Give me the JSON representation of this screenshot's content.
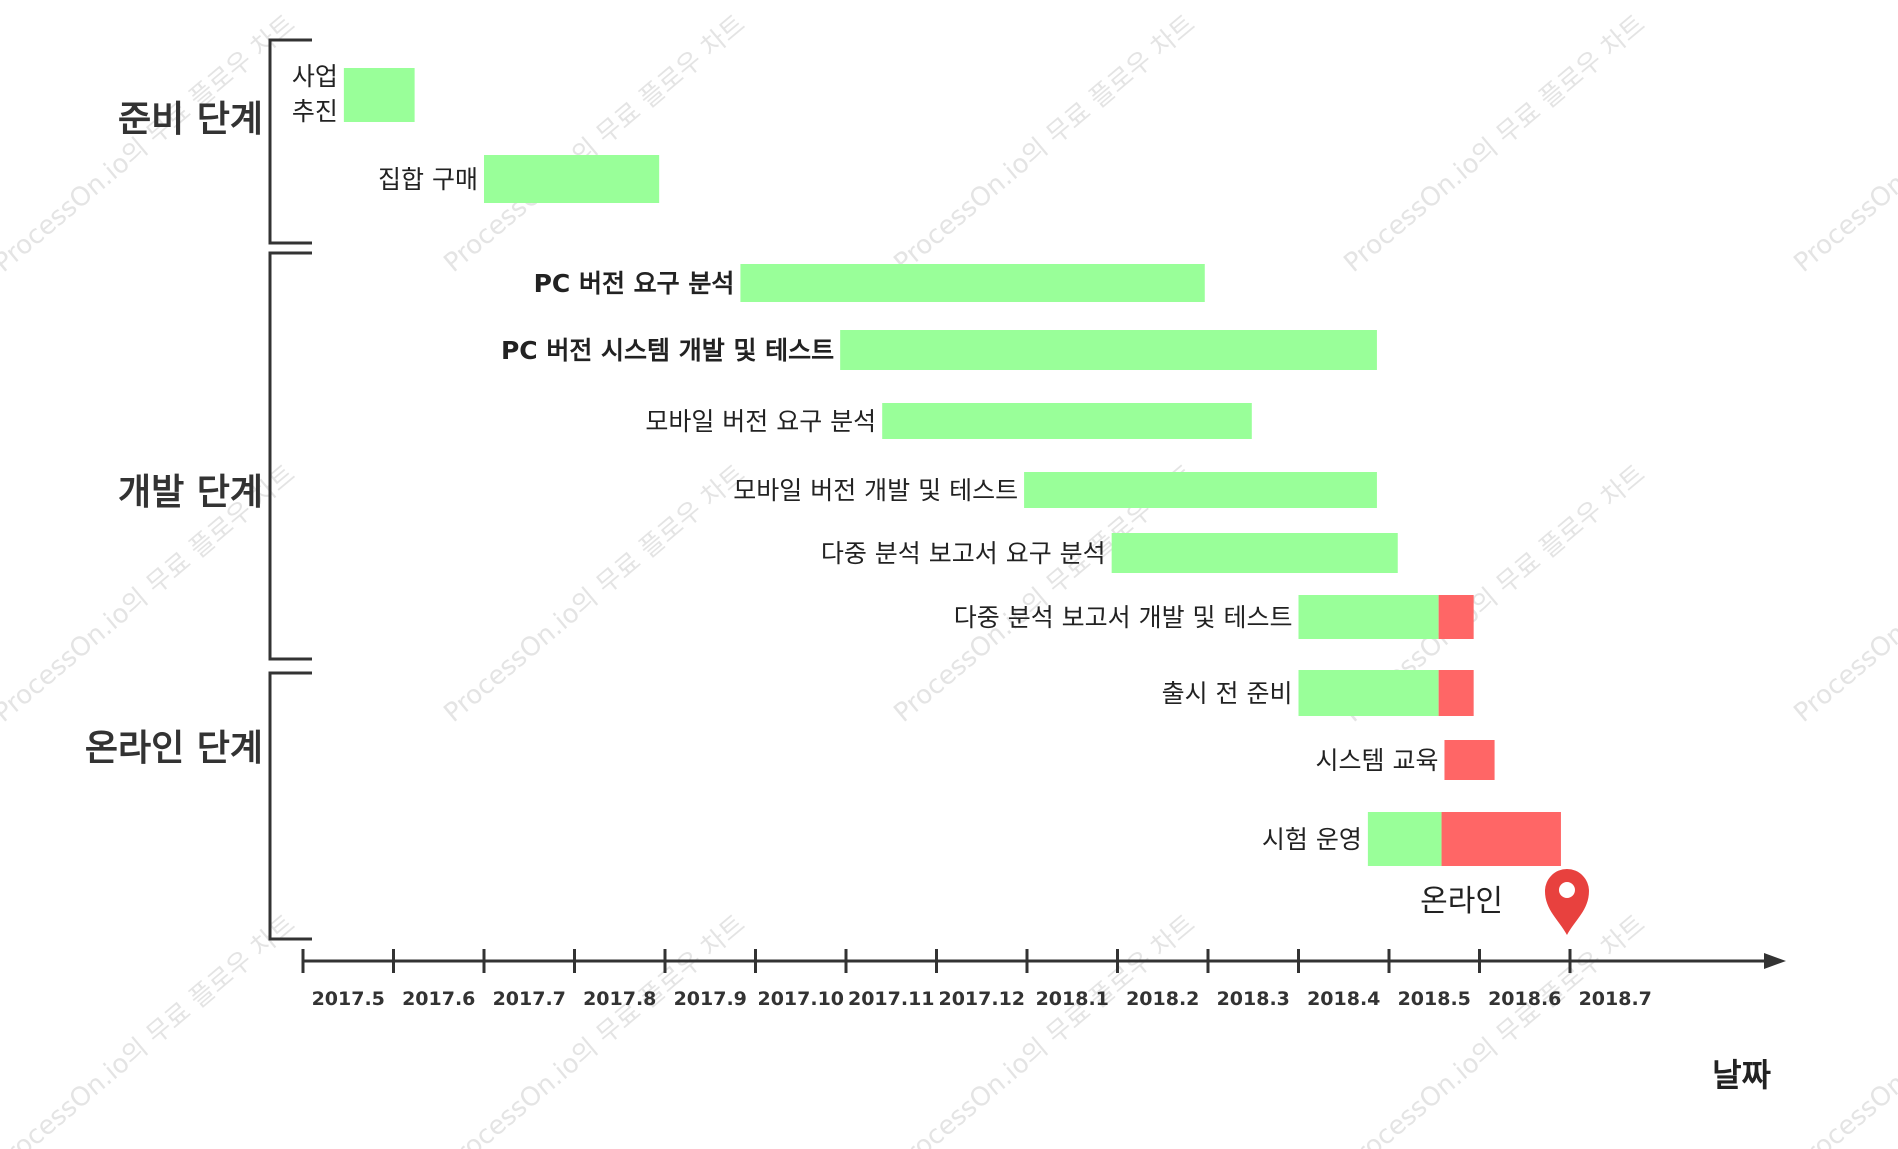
{
  "watermark": "ProcessOn.io의 무료 플로우 차트",
  "colors": {
    "done": "#99ff99",
    "remaining": "#ff6666",
    "axis": "#333333",
    "marker": "#e8413e"
  },
  "chart_data": {
    "type": "gantt",
    "xlabel": "날짜",
    "x_ticks": [
      "2017.5",
      "2017.6",
      "2017.7",
      "2017.8",
      "2017.9",
      "2017.10",
      "2017.11",
      "2017.12",
      "2018.1",
      "2018.2",
      "2018.3",
      "2018.4",
      "2018.5",
      "2018.6",
      "2018.7"
    ],
    "xlim": [
      "2017.5",
      "2018.8"
    ],
    "phases": [
      {
        "name": "준비 단계",
        "tasks": [
          0,
          1
        ]
      },
      {
        "name": "개발 단계",
        "tasks": [
          2,
          3,
          4,
          5,
          6,
          7
        ]
      },
      {
        "name": "온라인 단계",
        "tasks": [
          8,
          9,
          10
        ]
      }
    ],
    "tasks": [
      {
        "name": "사업\n추진",
        "start": "2017-05-15",
        "split": "2017-06-08",
        "end": "2017-06-08"
      },
      {
        "name": "집합 구매",
        "start": "2017-07-01",
        "split": "2017-08-30",
        "end": "2017-08-30"
      },
      {
        "name": "PC 버전 요구 분석",
        "start": "2017-09-26",
        "split": "2018-02-28",
        "end": "2018-02-28",
        "bold": true
      },
      {
        "name": "PC 버전 시스템 개발 및 테스트",
        "start": "2017-10-30",
        "split": "2018-04-27",
        "end": "2018-04-27",
        "bold": true
      },
      {
        "name": "모바일 버전 요구 분석",
        "start": "2017-11-13",
        "split": "2018-03-16",
        "end": "2018-03-16"
      },
      {
        "name": "모바일 버전 개발 및 테스트",
        "start": "2017-12-31",
        "split": "2018-04-27",
        "end": "2018-04-27"
      },
      {
        "name": "다중 분석 보고서 요구 분석",
        "start": "2018-01-30",
        "split": "2018-05-04",
        "end": "2018-05-04"
      },
      {
        "name": "다중 분석 보고서 개발 및 테스트",
        "start": "2018-04-01",
        "split": "2018-05-18",
        "end": "2018-05-30"
      },
      {
        "name": "출시 전 준비",
        "start": "2018-04-01",
        "split": "2018-05-18",
        "end": "2018-05-30"
      },
      {
        "name": "시스템 교육",
        "start": "2018-05-20",
        "split": "2018-05-20",
        "end": "2018-06-06"
      },
      {
        "name": "시험 운영",
        "start": "2018-04-24",
        "split": "2018-05-19",
        "end": "2018-06-28"
      }
    ],
    "milestone": {
      "label": "온라인",
      "date": "2018-06-30"
    }
  }
}
